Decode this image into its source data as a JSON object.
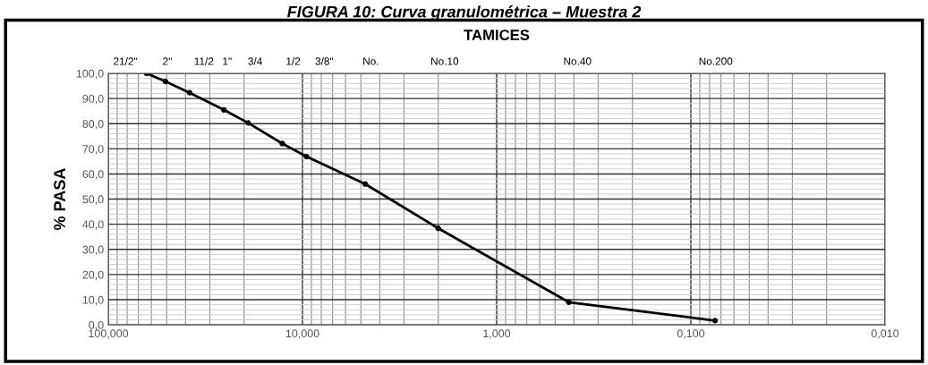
{
  "chart_data": {
    "type": "line",
    "title": "FIGURA 10: Curva granulométrica – Muestra 2",
    "x2label": "TAMICES",
    "ylabel": "% PASA",
    "x": [
      63.5,
      50.8,
      38.1,
      25.4,
      19.05,
      12.7,
      9.525,
      4.75,
      2.0,
      0.425,
      0.075
    ],
    "series": [
      {
        "color": "#000000",
        "values": [
          100.0,
          96.8,
          92.3,
          85.5,
          80.3,
          72.1,
          66.9,
          56.0,
          38.4,
          9.0,
          1.7
        ]
      }
    ],
    "marker": "circle",
    "line_style": "solid",
    "log": "x",
    "grid": true,
    "xlim": [
      100,
      0.01
    ],
    "ylim": [
      0,
      100
    ],
    "xticks": [
      {
        "value": 100,
        "label": "100,000"
      },
      {
        "value": 10,
        "label": "10,000"
      },
      {
        "value": 1,
        "label": "1,000"
      },
      {
        "value": 0.1,
        "label": "0,100"
      },
      {
        "value": 0.01,
        "label": "0,010"
      }
    ],
    "annotations": [
      "21/2\"",
      "2\"",
      "11/2",
      "1\"",
      "3/4",
      "1/2",
      "3/8\"",
      "No.",
      "No.10",
      "No.40",
      "No.200"
    ],
    "yticks": [
      {
        "value": 0,
        "label": "0,0"
      },
      {
        "value": 10,
        "label": "10,0"
      },
      {
        "value": 20,
        "label": "20,0"
      },
      {
        "value": 30,
        "label": "30,0"
      },
      {
        "value": 40,
        "label": "40,0"
      },
      {
        "value": 50,
        "label": "50,0"
      },
      {
        "value": 60,
        "label": "60,0"
      },
      {
        "value": 70,
        "label": "70,0"
      },
      {
        "value": 80,
        "label": "80,0"
      },
      {
        "value": 90,
        "label": "90,0"
      },
      {
        "value": 100,
        "label": "100,0"
      }
    ]
  }
}
